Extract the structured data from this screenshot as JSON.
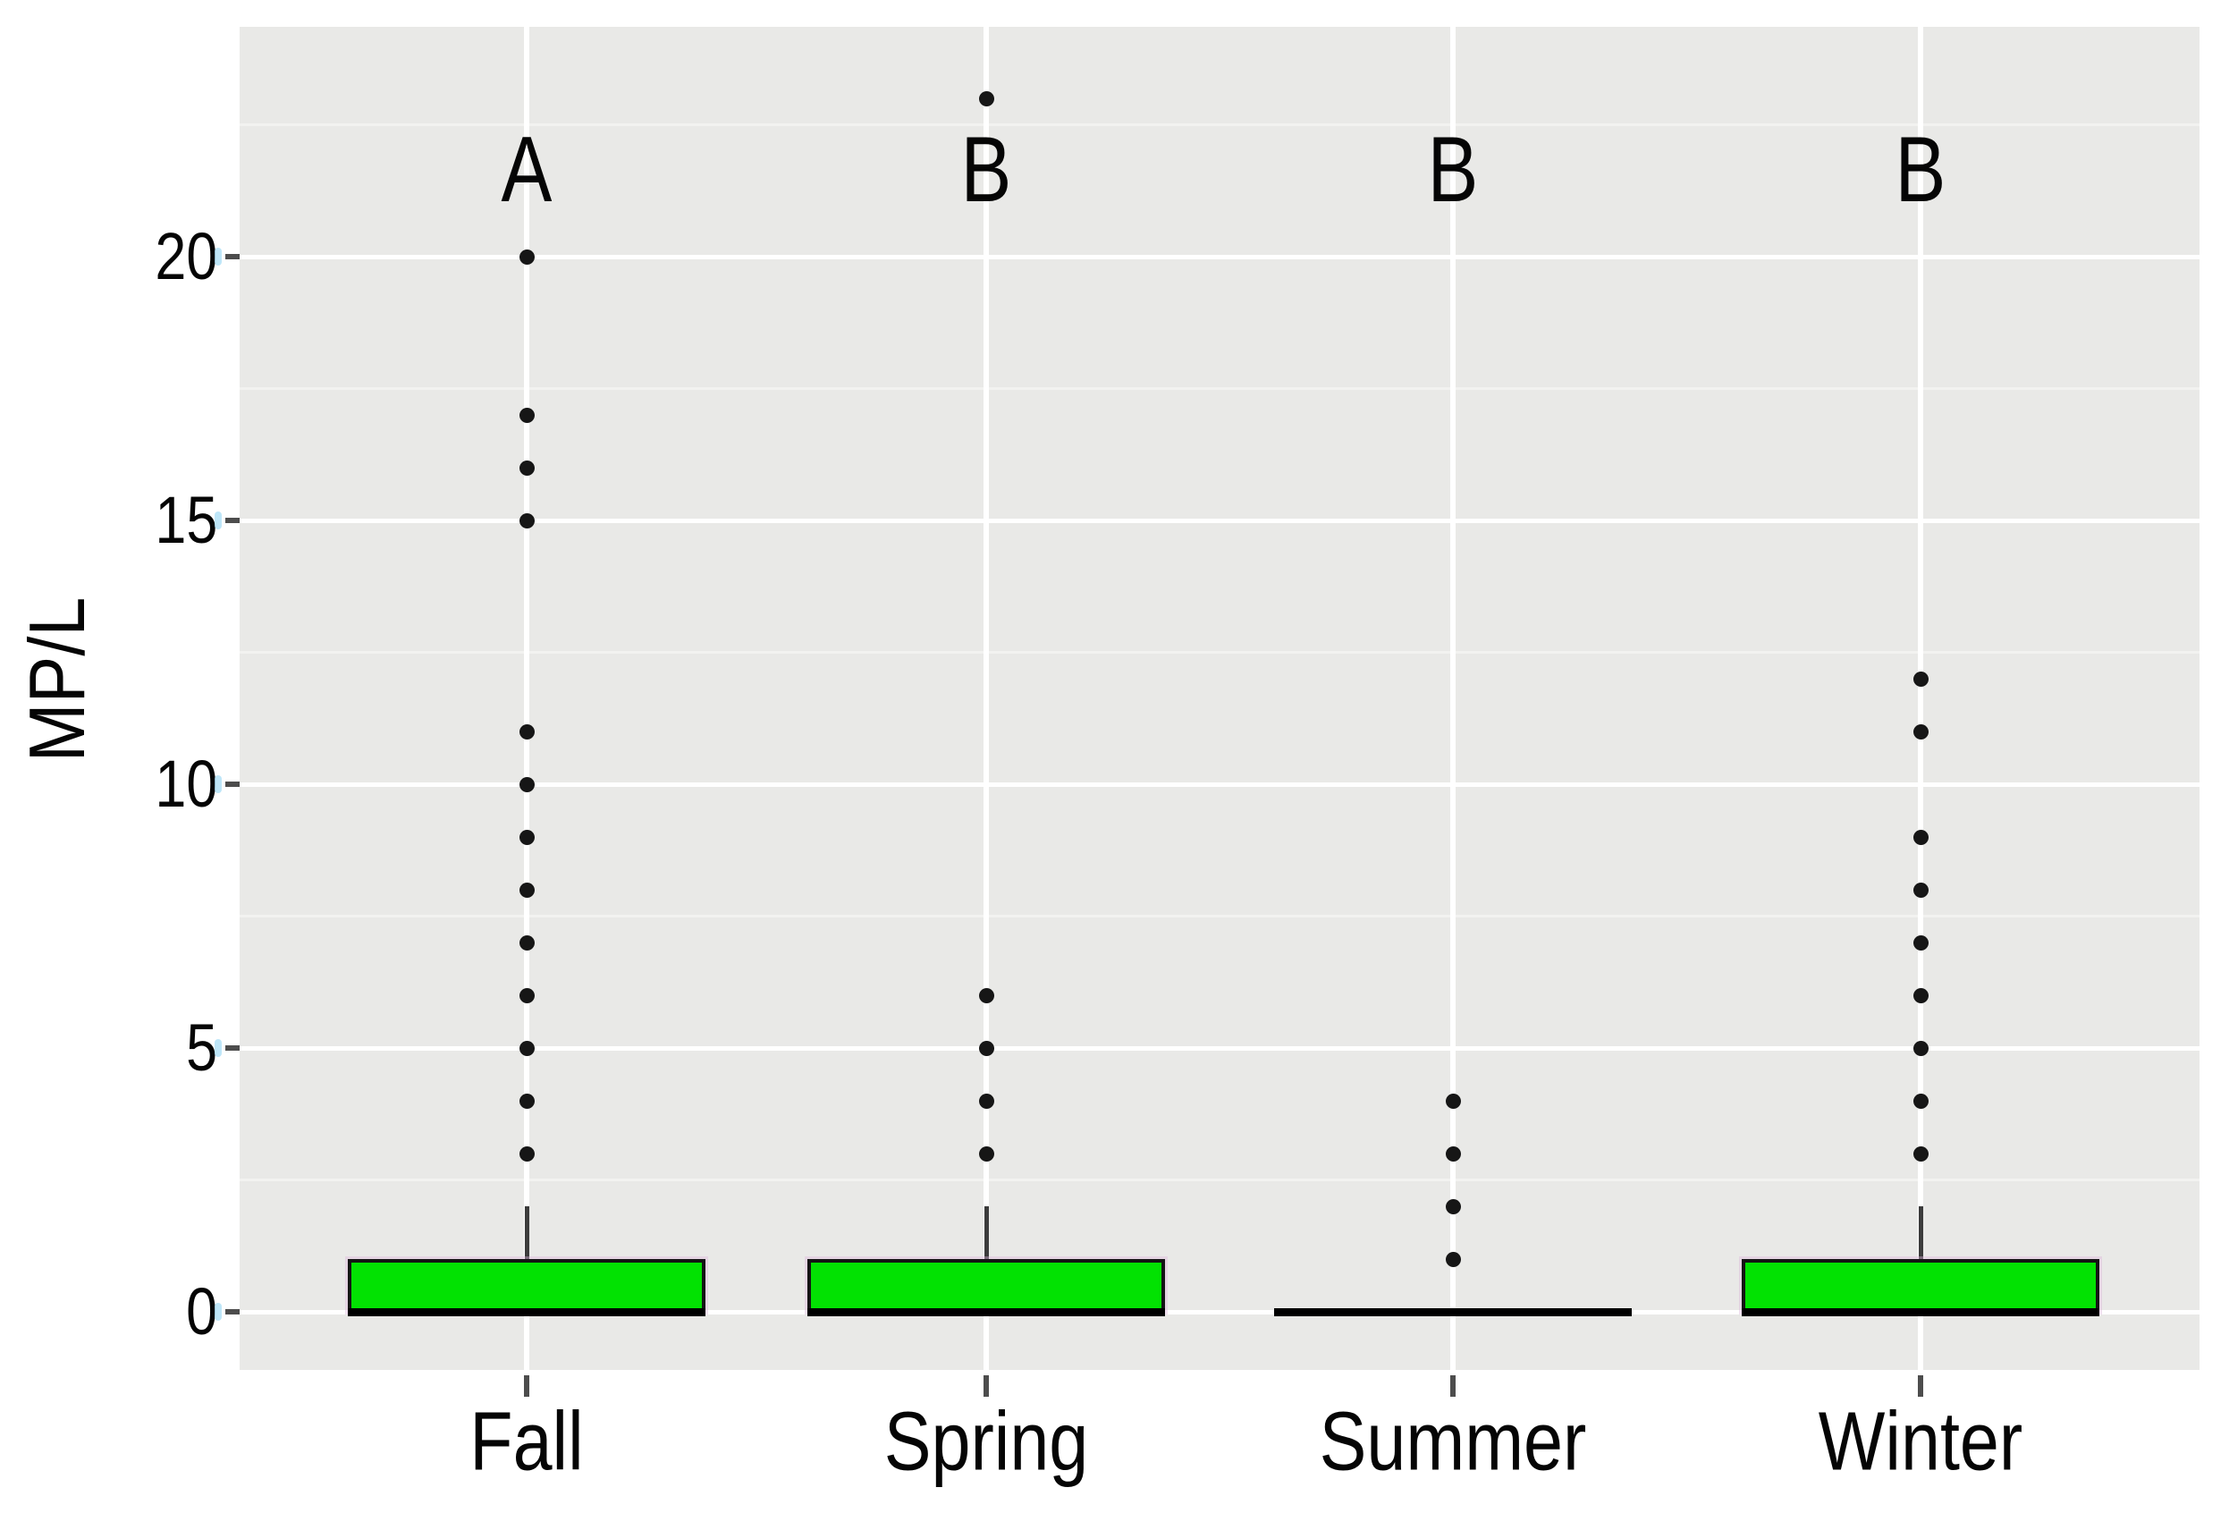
{
  "figure": {
    "background": "#ffffff",
    "plot_background": "#e9e9e7"
  },
  "chart_data": {
    "type": "boxplot",
    "title": "",
    "xlabel": "",
    "ylabel": "MP/L",
    "categories": [
      "Fall",
      "Spring",
      "Summer",
      "Winter"
    ],
    "significance_letters": [
      "A",
      "B",
      "B",
      "B"
    ],
    "y_ticks": [
      0,
      5,
      10,
      15,
      20
    ],
    "y_minor_gridlines": [
      2.5,
      7.5,
      12.5,
      17.5,
      22.5
    ],
    "ylim": [
      -1.1,
      24.4
    ],
    "legend": "none",
    "grid": "white major and minor horizontal gridlines on gray panel; white vertical gridline at each category center",
    "series": [
      {
        "name": "Fall",
        "letter": "A",
        "whisker_low": 0,
        "q1": 0,
        "median": 0,
        "q3": 1,
        "whisker_high": 2,
        "outliers": [
          3,
          4,
          5,
          6,
          7,
          8,
          9,
          10,
          11,
          15,
          16,
          17,
          20
        ]
      },
      {
        "name": "Spring",
        "letter": "B",
        "whisker_low": 0,
        "q1": 0,
        "median": 0,
        "q3": 1,
        "whisker_high": 2,
        "outliers": [
          3,
          4,
          5,
          6,
          23
        ]
      },
      {
        "name": "Summer",
        "letter": "B",
        "whisker_low": 0,
        "q1": 0,
        "median": 0,
        "q3": 0,
        "whisker_high": 0,
        "outliers": [
          1,
          2,
          3,
          4
        ]
      },
      {
        "name": "Winter",
        "letter": "B",
        "whisker_low": 0,
        "q1": 0,
        "median": 0,
        "q3": 1,
        "whisker_high": 2,
        "outliers": [
          3,
          4,
          5,
          6,
          7,
          8,
          9,
          11,
          12
        ]
      }
    ],
    "colors": {
      "box_fill": "#02e202",
      "box_border": "#141414",
      "box_fringe": "#ddb4dd",
      "median": "#000000",
      "whisker": "#3c3c3c",
      "outlier": "#161616",
      "major_grid": "#ffffff",
      "minor_grid": "#f2f2f0",
      "tick": "#4d4d4d",
      "tick_accent": "#a8def5",
      "text": "#050505"
    }
  }
}
